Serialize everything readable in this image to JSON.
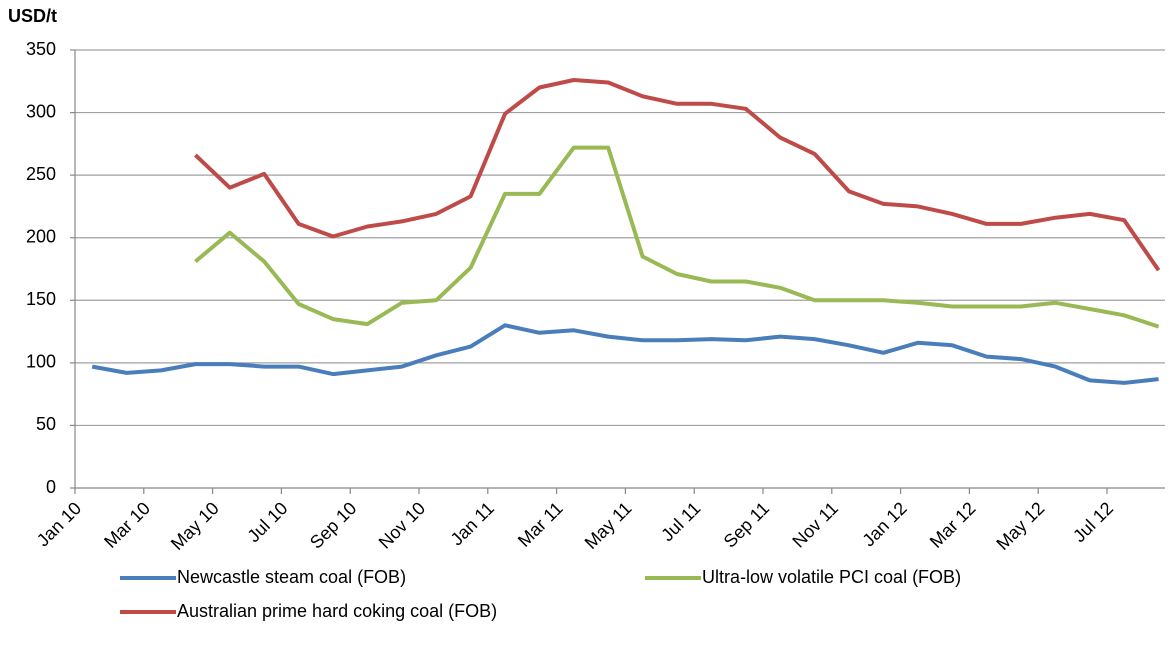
{
  "chart_data": {
    "type": "line",
    "y_label": "USD/t",
    "categories": [
      "Jan 10",
      null,
      "Mar 10",
      null,
      "May 10",
      null,
      "Jul 10",
      null,
      "Sep 10",
      null,
      "Nov 10",
      null,
      "Jan 11",
      null,
      "Mar 11",
      null,
      "May 11",
      null,
      "Jul 11",
      null,
      "Sep 11",
      null,
      "Nov 11",
      null,
      "Jan 12",
      null,
      "Mar 12",
      null,
      "May 12",
      null,
      "Jul 12",
      null
    ],
    "series": [
      {
        "name": "Newcastle steam coal (FOB)",
        "color": "#4a7ebb",
        "values": [
          97,
          92,
          94,
          99,
          99,
          97,
          97,
          91,
          94,
          97,
          106,
          113,
          130,
          124,
          126,
          121,
          118,
          118,
          119,
          118,
          121,
          119,
          114,
          108,
          116,
          114,
          105,
          103,
          97,
          86,
          84,
          87
        ]
      },
      {
        "name": "Ultra-low volatile PCI coal (FOB)",
        "color": "#98b954",
        "values": [
          null,
          null,
          null,
          181,
          204,
          181,
          147,
          135,
          131,
          148,
          150,
          176,
          235,
          235,
          272,
          272,
          185,
          171,
          165,
          165,
          160,
          150,
          150,
          150,
          148,
          145,
          145,
          145,
          148,
          143,
          138,
          129
        ]
      },
      {
        "name": "Australian prime hard coking coal (FOB)",
        "color": "#be4b48",
        "values": [
          null,
          null,
          null,
          266,
          240,
          251,
          211,
          201,
          209,
          213,
          219,
          233,
          299,
          320,
          326,
          324,
          313,
          307,
          307,
          303,
          280,
          267,
          237,
          227,
          225,
          219,
          211,
          211,
          216,
          219,
          214,
          174
        ]
      }
    ],
    "ylim": [
      0,
      350
    ],
    "yticks": [
      0,
      50,
      100,
      150,
      200,
      250,
      300,
      350
    ],
    "grid": true
  }
}
